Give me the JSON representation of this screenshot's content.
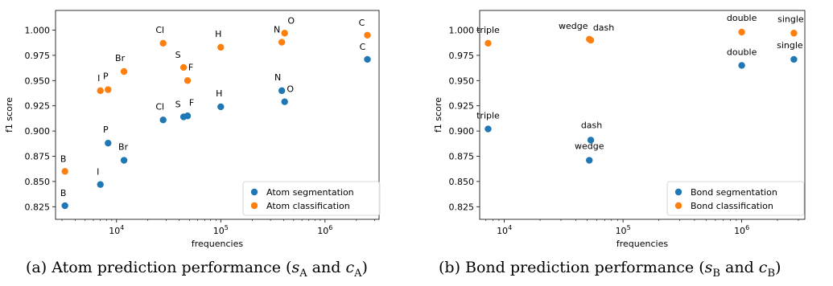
{
  "chart_data": [
    {
      "type": "scatter",
      "title": "",
      "xlabel": "frequencies",
      "ylabel": "f1 score",
      "xscale": "log",
      "xlim": [
        2600,
        3300000
      ],
      "ylim": [
        0.8125,
        1.0195
      ],
      "yticks": [
        0.825,
        0.85,
        0.875,
        0.9,
        0.925,
        0.95,
        0.975,
        1.0
      ],
      "ytick_labels": [
        "0.825",
        "0.850",
        "0.875",
        "0.900",
        "0.925",
        "0.950",
        "0.975",
        "1.000"
      ],
      "xtick_labels": [
        {
          "base": "10",
          "exp": "4",
          "value": 10000
        },
        {
          "base": "10",
          "exp": "5",
          "value": 100000
        },
        {
          "base": "10",
          "exp": "6",
          "value": 1000000
        }
      ],
      "grid": false,
      "legend": "lower-right",
      "series": [
        {
          "name": "Atom segmentation",
          "color": "#1f77b4",
          "points": [
            {
              "label": "B",
              "x": 3200,
              "y": 0.826
            },
            {
              "label": "I",
              "x": 7000,
              "y": 0.847
            },
            {
              "label": "P",
              "x": 8300,
              "y": 0.888
            },
            {
              "label": "Br",
              "x": 11800,
              "y": 0.871
            },
            {
              "label": "Cl",
              "x": 28000,
              "y": 0.911
            },
            {
              "label": "S",
              "x": 44000,
              "y": 0.914
            },
            {
              "label": "F",
              "x": 48000,
              "y": 0.915
            },
            {
              "label": "H",
              "x": 100000,
              "y": 0.924
            },
            {
              "label": "N",
              "x": 385000,
              "y": 0.94
            },
            {
              "label": "O",
              "x": 410000,
              "y": 0.929
            },
            {
              "label": "C",
              "x": 2550000,
              "y": 0.971
            }
          ]
        },
        {
          "name": "Atom classification",
          "color": "#ff7f0e",
          "points": [
            {
              "label": "B",
              "x": 3200,
              "y": 0.86
            },
            {
              "label": "I",
              "x": 7000,
              "y": 0.94
            },
            {
              "label": "P",
              "x": 8300,
              "y": 0.941
            },
            {
              "label": "Br",
              "x": 11800,
              "y": 0.959
            },
            {
              "label": "Cl",
              "x": 28000,
              "y": 0.987
            },
            {
              "label": "S",
              "x": 44000,
              "y": 0.963
            },
            {
              "label": "F",
              "x": 48000,
              "y": 0.95
            },
            {
              "label": "H",
              "x": 100000,
              "y": 0.983
            },
            {
              "label": "N",
              "x": 385000,
              "y": 0.988
            },
            {
              "label": "O",
              "x": 410000,
              "y": 0.997
            },
            {
              "label": "C",
              "x": 2550000,
              "y": 0.995
            }
          ]
        }
      ],
      "caption": {
        "prefix": "(a) Atom prediction performance (",
        "v1": "s",
        "s1": "A",
        "mid": " and ",
        "v2": "c",
        "s2": "A",
        "suffix": ")"
      }
    },
    {
      "type": "scatter",
      "title": "",
      "xlabel": "frequencies",
      "ylabel": "f1 score",
      "xscale": "log",
      "xlim": [
        6200,
        3400000
      ],
      "ylim": [
        0.8125,
        1.0195
      ],
      "yticks": [
        0.825,
        0.85,
        0.875,
        0.9,
        0.925,
        0.95,
        0.975,
        1.0
      ],
      "ytick_labels": [
        "0.825",
        "0.850",
        "0.875",
        "0.900",
        "0.925",
        "0.950",
        "0.975",
        "1.000"
      ],
      "xtick_labels": [
        {
          "base": "10",
          "exp": "4",
          "value": 10000
        },
        {
          "base": "10",
          "exp": "5",
          "value": 100000
        },
        {
          "base": "10",
          "exp": "6",
          "value": 1000000
        }
      ],
      "grid": false,
      "legend": "lower-right",
      "series": [
        {
          "name": "Bond segmentation",
          "color": "#1f77b4",
          "points": [
            {
              "label": "triple",
              "x": 7300,
              "y": 0.902
            },
            {
              "label": "wedge",
              "x": 52000,
              "y": 0.871
            },
            {
              "label": "dash",
              "x": 53500,
              "y": 0.891
            },
            {
              "label": "double",
              "x": 1000000,
              "y": 0.965
            },
            {
              "label": "single",
              "x": 2750000,
              "y": 0.971
            }
          ]
        },
        {
          "name": "Bond classification",
          "color": "#ff7f0e",
          "points": [
            {
              "label": "triple",
              "x": 7300,
              "y": 0.987
            },
            {
              "label": "wedge",
              "x": 52000,
              "y": 0.991
            },
            {
              "label": "dash",
              "x": 53500,
              "y": 0.99
            },
            {
              "label": "double",
              "x": 1000000,
              "y": 0.998
            },
            {
              "label": "single",
              "x": 2750000,
              "y": 0.997
            }
          ]
        }
      ],
      "caption": {
        "prefix": "(b) Bond prediction performance (",
        "v1": "s",
        "s1": "B",
        "mid": " and ",
        "v2": "c",
        "s2": "B",
        "suffix": ")"
      }
    }
  ]
}
